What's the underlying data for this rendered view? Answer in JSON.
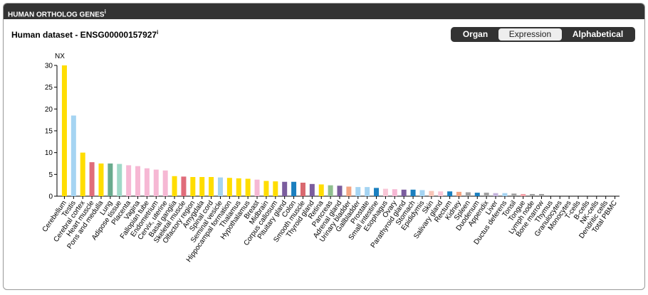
{
  "header": {
    "title": "HUMAN ORTHOLOG GENES",
    "info": "i"
  },
  "panel": {
    "title": "Human dataset - ENSG00000157927",
    "info": "i"
  },
  "buttons": [
    "Organ",
    "Expression",
    "Alphabetical"
  ],
  "selected_button": 1,
  "chart_data": {
    "type": "bar",
    "y_label": "NX",
    "categories": [
      "Cerebellum",
      "Testis",
      "Cerebral cortex",
      "Heart muscle",
      "Pons and medulla",
      "Lung",
      "Adipose tissue",
      "Placenta",
      "Vagina",
      "Fallopian tube",
      "Endometrium",
      "Cervix, uterine",
      "Basal ganglia",
      "Skeletal muscle",
      "Olfactory region",
      "Amygdala",
      "Spinal cord",
      "Seminal vesicle",
      "Hippocampal formation",
      "Thalamus",
      "Hypothalamus",
      "Breast",
      "Midbrain",
      "Corpus callosum",
      "Pituitary gland",
      "Colon",
      "Smooth muscle",
      "Thyroid gland",
      "Retina",
      "Pancreas",
      "Adrenal gland",
      "Urinary bladder",
      "Gallbladder",
      "Prostate",
      "Small intestine",
      "Esophagus",
      "Ovary",
      "Parathyroid gland",
      "Stomach",
      "Epididymis",
      "Skin",
      "Salivary gland",
      "Rectum",
      "Kidney",
      "Spleen",
      "Duodenum",
      "Appendix",
      "Liver",
      "Ductus deferens",
      "Tonsil",
      "Tongue",
      "Lymph node",
      "Bone marrow",
      "Thymus",
      "Granulocytes",
      "Monocytes",
      "T-cells",
      "B-cells",
      "NK-cells",
      "Dendritic cells",
      "Total PBMC"
    ],
    "values": [
      30,
      18.5,
      10,
      7.8,
      7.5,
      7.5,
      7.4,
      7.1,
      6.9,
      6.4,
      6.1,
      5.9,
      4.6,
      4.5,
      4.4,
      4.4,
      4.4,
      4.3,
      4.2,
      4.1,
      4.0,
      3.8,
      3.5,
      3.4,
      3.3,
      3.3,
      3.1,
      2.8,
      2.7,
      2.5,
      2.4,
      2.2,
      2.1,
      2.1,
      1.9,
      1.7,
      1.6,
      1.5,
      1.5,
      1.4,
      1.2,
      1.1,
      1.1,
      1.0,
      0.9,
      0.8,
      0.8,
      0.7,
      0.7,
      0.6,
      0.5,
      0.5,
      0.5,
      0,
      0,
      0,
      0,
      0,
      0,
      0,
      0
    ],
    "colors": [
      "#ffdd00",
      "#a5d4f2",
      "#ffdd00",
      "#e06c7a",
      "#ffdd00",
      "#6aab8e",
      "#9fd9c7",
      "#f6b8d4",
      "#f6b8d4",
      "#f6b8d4",
      "#f6b8d4",
      "#f6b8d4",
      "#ffdd00",
      "#e06c7a",
      "#ffdd00",
      "#ffdd00",
      "#ffdd00",
      "#a5d4f2",
      "#ffdd00",
      "#ffdd00",
      "#ffdd00",
      "#f6b8d4",
      "#ffdd00",
      "#ffdd00",
      "#7b5d9e",
      "#1a7fbf",
      "#d9686f",
      "#7b5d9e",
      "#ffdd00",
      "#8fbf8f",
      "#7b5d9e",
      "#f4a582",
      "#a5d4f2",
      "#a5d4f2",
      "#1a7fbf",
      "#f9c6d6",
      "#f6b8d4",
      "#7b5d9e",
      "#1a7fbf",
      "#a5d4f2",
      "#f9c6b8",
      "#f9c6d6",
      "#1a7fbf",
      "#f4a582",
      "#a0a0a0",
      "#1a7fbf",
      "#a0a0a0",
      "#c4b3dc",
      "#a5d4f2",
      "#a0a0a0",
      "#f4a0a8",
      "#a0a0a0",
      "#a0a0a0",
      "#a0a0a0",
      "#a0a0a0",
      "#a0a0a0",
      "#a0a0a0",
      "#a0a0a0",
      "#a0a0a0",
      "#a0a0a0",
      "#a0a0a0"
    ],
    "ylim": [
      0,
      30
    ],
    "yticks": [
      0,
      5,
      10,
      15,
      20,
      25,
      30
    ]
  }
}
